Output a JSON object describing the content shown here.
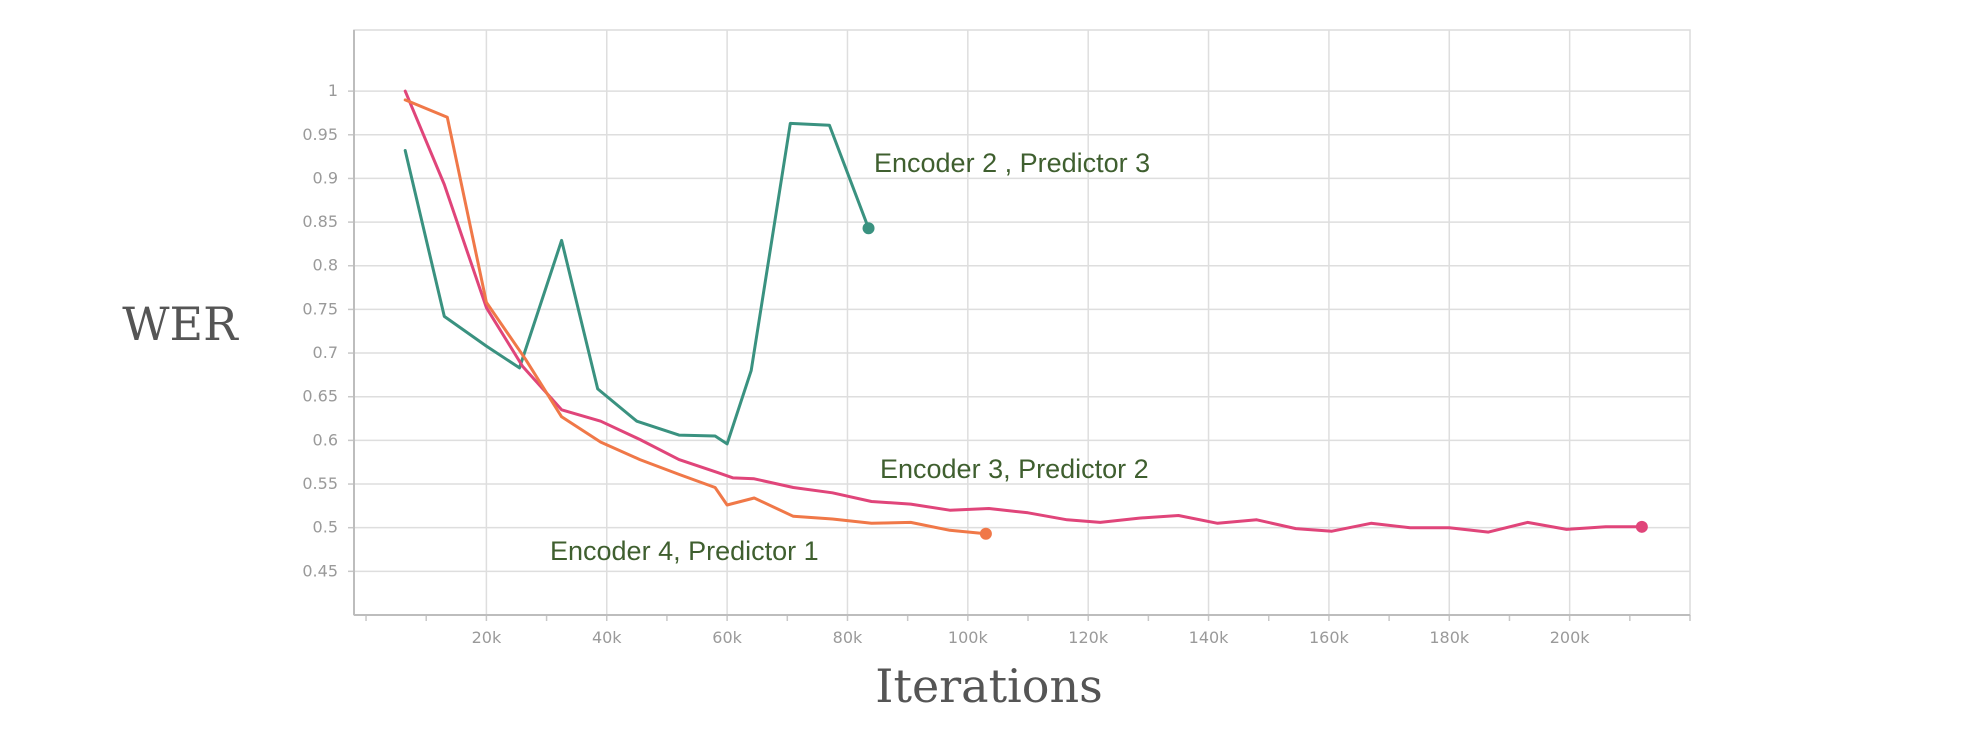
{
  "chart_data": {
    "type": "line",
    "title": "",
    "xlabel": "Iterations",
    "ylabel": "WER",
    "xlim": [
      -2000,
      220000
    ],
    "ylim": [
      0.4,
      1.07
    ],
    "grid": true,
    "legend": "none",
    "x_ticks": [
      20000,
      40000,
      60000,
      80000,
      100000,
      120000,
      140000,
      160000,
      180000,
      200000
    ],
    "x_tick_labels": [
      "20k",
      "40k",
      "60k",
      "80k",
      "100k",
      "120k",
      "140k",
      "160k",
      "180k",
      "200k"
    ],
    "y_ticks": [
      0.45,
      0.5,
      0.55,
      0.6,
      0.65,
      0.7,
      0.75,
      0.8,
      0.85,
      0.9,
      0.95,
      1.0
    ],
    "y_tick_labels": [
      "0.45",
      "0.5",
      "0.55",
      "0.6",
      "0.65",
      "0.7",
      "0.75",
      "0.8",
      "0.85",
      "0.9",
      "0.95",
      "1"
    ],
    "series": [
      {
        "name": "Encoder 2 , Predictor 3",
        "color": "#3a9280",
        "x": [
          6500,
          13000,
          20000,
          25500,
          32500,
          38500,
          45000,
          52000,
          58000,
          60000,
          64000,
          70500,
          77000,
          83500
        ],
        "y": [
          0.932,
          0.742,
          0.708,
          0.683,
          0.829,
          0.659,
          0.622,
          0.606,
          0.605,
          0.596,
          0.68,
          0.963,
          0.961,
          0.843
        ]
      },
      {
        "name": "Encoder 3, Predictor 2",
        "color": "#e0457a",
        "x": [
          6500,
          13000,
          20000,
          26000,
          32500,
          39000,
          45500,
          52000,
          58500,
          61000,
          64500,
          71000,
          77500,
          84000,
          90500,
          97000,
          103500,
          110000,
          116500,
          122000,
          128500,
          135000,
          141500,
          148000,
          154500,
          160500,
          167000,
          173500,
          180000,
          186500,
          193000,
          199500,
          206000,
          212000
        ],
        "y": [
          1.0,
          0.893,
          0.752,
          0.685,
          0.635,
          0.622,
          0.601,
          0.578,
          0.563,
          0.557,
          0.556,
          0.546,
          0.54,
          0.53,
          0.527,
          0.52,
          0.522,
          0.517,
          0.509,
          0.506,
          0.511,
          0.514,
          0.505,
          0.509,
          0.499,
          0.496,
          0.505,
          0.5,
          0.5,
          0.495,
          0.506,
          0.498,
          0.501,
          0.501
        ]
      },
      {
        "name": "Encoder 4, Predictor 1",
        "color": "#f07848",
        "x": [
          6500,
          13500,
          20000,
          26500,
          32500,
          39000,
          45500,
          52000,
          58000,
          60000,
          64500,
          71000,
          77500,
          84000,
          90500,
          97000,
          103000
        ],
        "y": [
          0.99,
          0.97,
          0.758,
          0.693,
          0.627,
          0.598,
          0.578,
          0.561,
          0.546,
          0.526,
          0.534,
          0.513,
          0.51,
          0.505,
          0.506,
          0.497,
          0.493
        ]
      }
    ],
    "annotations": [
      {
        "text": "Encoder 2 , Predictor 3",
        "series": 0
      },
      {
        "text": "Encoder 3, Predictor 2",
        "series": 1
      },
      {
        "text": "Encoder 4, Predictor 1",
        "series": 2
      }
    ]
  }
}
